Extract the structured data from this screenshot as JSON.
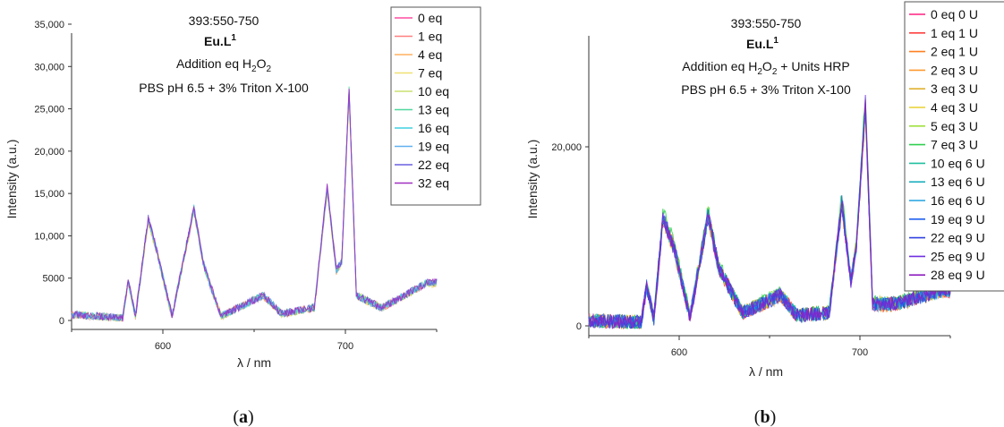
{
  "panels": [
    {
      "caption_letter": "a",
      "title_lines": [
        "393:550-750",
        "Eu.L",
        "Addition eq H",
        "PBS pH 6.5 + 3% Triton X-100"
      ],
      "title_sup": "1",
      "title_sub": "2",
      "title_sub2": "O",
      "title_sub3": "2",
      "legend": [
        "0 eq",
        "1 eq",
        "4 eq",
        "7 eq",
        "10 eq",
        "13 eq",
        "16 eq",
        "19 eq",
        "22 eq",
        "32 eq"
      ],
      "colors": [
        "#ff4fa0",
        "#ff8080",
        "#ffb060",
        "#f0e070",
        "#c8e070",
        "#50d8a0",
        "#40d0e0",
        "#60b0f0",
        "#6a60e0",
        "#a030c0"
      ],
      "xlabel": "λ / nm",
      "ylabel": "Intensity (a.u.)",
      "xticks": [
        "600",
        "700"
      ],
      "yticks": [
        "0",
        "5000",
        "10,000",
        "15,000",
        "20,000",
        "25,000",
        "30,000",
        "35,000"
      ]
    },
    {
      "caption_letter": "b",
      "title_lines": [
        "393:550-750",
        "Eu.L",
        "Addition eq H",
        "PBS pH 6.5 + 3% Triton X-100"
      ],
      "title_sup": "1",
      "title_sub": "2",
      "title_sub2": "O",
      "title_sub3": "2",
      "title_tail": " + Units HRP",
      "legend": [
        "0 eq 0 U",
        "1 eq 1 U",
        "2 eq 1 U",
        "2 eq 3 U",
        "3 eq 3 U",
        "4 eq 3 U",
        "5 eq 3 U",
        "7 eq 3 U",
        "10 eq 6 U",
        "13 eq 6 U",
        "16 eq 6 U",
        "19 eq 9 U",
        "22 eq 9 U",
        "25 eq 9 U",
        "28 eq 9 U"
      ],
      "colors": [
        "#ff2080",
        "#ff4040",
        "#ff8020",
        "#ff9a30",
        "#e0b030",
        "#e8d030",
        "#a0e040",
        "#30d050",
        "#20c0a0",
        "#20b0c0",
        "#20a0e0",
        "#2060f0",
        "#3040e0",
        "#7030e0",
        "#9020c0"
      ],
      "xlabel": "λ / nm",
      "ylabel": "Intensity (a.u.)",
      "xticks": [
        "600",
        "700"
      ],
      "yticks": [
        "0",
        "20,000"
      ]
    }
  ],
  "chart_data": [
    {
      "type": "line",
      "title": "393:550-750 Eu.L1 Addition eq H2O2 PBS pH 6.5 + 3% Triton X-100",
      "xlabel": "λ / nm",
      "ylabel": "Intensity (a.u.)",
      "xlim": [
        550,
        750
      ],
      "ylim": [
        -1000,
        35000
      ],
      "peaks": [
        {
          "x": 550,
          "y": 700
        },
        {
          "x": 578,
          "y": 300
        },
        {
          "x": 581,
          "y": 4700
        },
        {
          "x": 585,
          "y": 500
        },
        {
          "x": 592,
          "y": 12200
        },
        {
          "x": 597,
          "y": 8000
        },
        {
          "x": 605,
          "y": 500
        },
        {
          "x": 617,
          "y": 13300
        },
        {
          "x": 622,
          "y": 7000
        },
        {
          "x": 625,
          "y": 4800
        },
        {
          "x": 632,
          "y": 500
        },
        {
          "x": 655,
          "y": 3000
        },
        {
          "x": 665,
          "y": 800
        },
        {
          "x": 683,
          "y": 1500
        },
        {
          "x": 690,
          "y": 15800
        },
        {
          "x": 695,
          "y": 6000
        },
        {
          "x": 698,
          "y": 7000
        },
        {
          "x": 702,
          "y": 27500
        },
        {
          "x": 706,
          "y": 3000
        },
        {
          "x": 720,
          "y": 1500
        },
        {
          "x": 745,
          "y": 4500
        }
      ],
      "series": [
        {
          "name": "0 eq",
          "scale": 0.98
        },
        {
          "name": "1 eq",
          "scale": 0.99
        },
        {
          "name": "4 eq",
          "scale": 0.97
        },
        {
          "name": "7 eq",
          "scale": 0.96
        },
        {
          "name": "10 eq",
          "scale": 0.98
        },
        {
          "name": "13 eq",
          "scale": 0.99
        },
        {
          "name": "16 eq",
          "scale": 1.0
        },
        {
          "name": "19 eq",
          "scale": 0.99
        },
        {
          "name": "22 eq",
          "scale": 1.0
        },
        {
          "name": "32 eq",
          "scale": 1.0
        }
      ]
    },
    {
      "type": "line",
      "title": "393:550-750 Eu.L1 Addition eq H2O2 + Units HRP PBS pH 6.5 + 3% Triton X-100",
      "xlabel": "λ / nm",
      "ylabel": "Intensity (a.u.)",
      "xlim": [
        550,
        750
      ],
      "ylim": [
        -1000,
        35000
      ],
      "peaks": [
        {
          "x": 550,
          "y": 600
        },
        {
          "x": 579,
          "y": 400
        },
        {
          "x": 582,
          "y": 4500
        },
        {
          "x": 586,
          "y": 800
        },
        {
          "x": 591,
          "y": 12200
        },
        {
          "x": 597,
          "y": 9000
        },
        {
          "x": 606,
          "y": 1000
        },
        {
          "x": 616,
          "y": 12500
        },
        {
          "x": 622,
          "y": 6500
        },
        {
          "x": 626,
          "y": 5000
        },
        {
          "x": 635,
          "y": 1500
        },
        {
          "x": 656,
          "y": 3500
        },
        {
          "x": 665,
          "y": 1200
        },
        {
          "x": 683,
          "y": 1500
        },
        {
          "x": 690,
          "y": 14000
        },
        {
          "x": 695,
          "y": 5000
        },
        {
          "x": 698,
          "y": 9000
        },
        {
          "x": 703,
          "y": 25000
        },
        {
          "x": 707,
          "y": 2500
        },
        {
          "x": 720,
          "y": 2500
        },
        {
          "x": 745,
          "y": 4000
        }
      ],
      "series": [
        {
          "name": "0 eq 0 U",
          "scale": 0.96
        },
        {
          "name": "1 eq 1 U",
          "scale": 0.98
        },
        {
          "name": "2 eq 1 U",
          "scale": 1.0
        },
        {
          "name": "2 eq 3 U",
          "scale": 0.95
        },
        {
          "name": "3 eq 3 U",
          "scale": 0.97
        },
        {
          "name": "4 eq 3 U",
          "scale": 0.99
        },
        {
          "name": "5 eq 3 U",
          "scale": 1.02
        },
        {
          "name": "7 eq 3 U",
          "scale": 1.05
        },
        {
          "name": "10 eq 6 U",
          "scale": 1.0
        },
        {
          "name": "13 eq 6 U",
          "scale": 0.97
        },
        {
          "name": "16 eq 6 U",
          "scale": 0.98
        },
        {
          "name": "19 eq 9 U",
          "scale": 0.99
        },
        {
          "name": "22 eq 9 U",
          "scale": 0.96
        },
        {
          "name": "25 eq 9 U",
          "scale": 1.0
        },
        {
          "name": "28 eq 9 U",
          "scale": 0.98
        }
      ]
    }
  ]
}
